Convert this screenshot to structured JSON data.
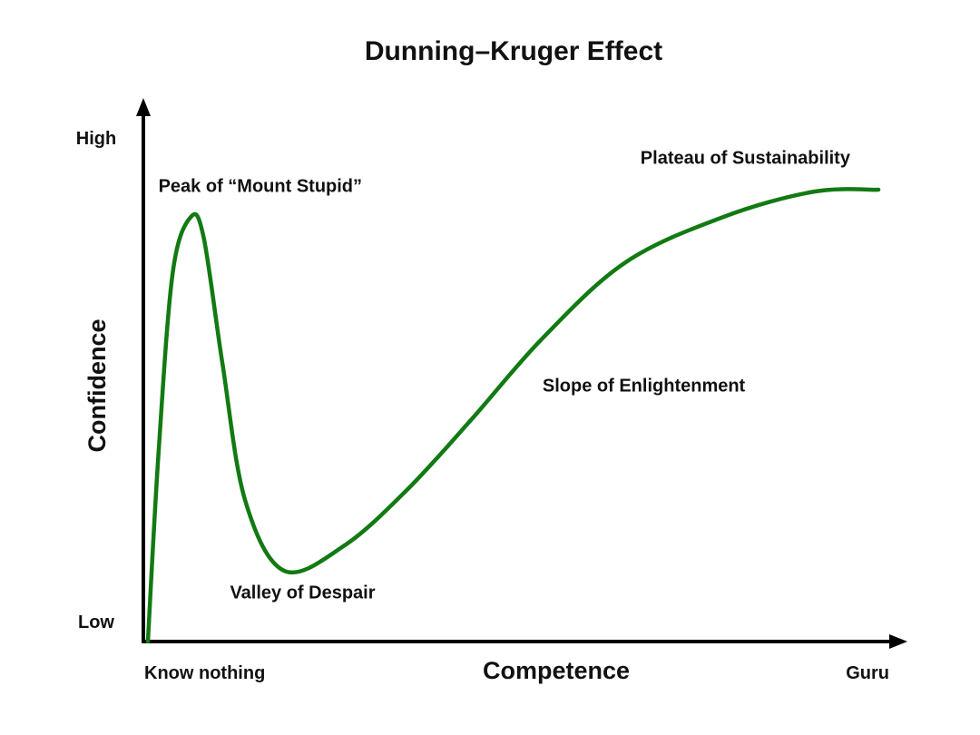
{
  "chart_data": {
    "type": "line",
    "title": "Dunning–Kruger Effect",
    "xlabel": "Competence",
    "ylabel": "Confidence",
    "x_tick_labels": [
      "Know nothing",
      "Guru"
    ],
    "y_tick_labels": [
      "Low",
      "High"
    ],
    "xlim": [
      0,
      100
    ],
    "ylim": [
      0,
      100
    ],
    "grid": false,
    "line_color": "#127a12",
    "series": [
      {
        "x": [
          0.6,
          2,
          3.9,
          6.3,
          8,
          10.5,
          13.5,
          18.7,
          26.7,
          35,
          43.6,
          53,
          64,
          77,
          89,
          97.6
        ],
        "y": [
          0,
          37,
          73,
          84,
          80,
          55,
          28,
          14,
          19,
          30,
          44,
          60,
          75,
          84,
          89,
          89.4
        ]
      }
    ],
    "annotations": [
      {
        "text": "Peak of “Mount Stupid”",
        "x": 2,
        "y": 89
      },
      {
        "text": "Valley of Despair",
        "x": 11.5,
        "y": 8.5
      },
      {
        "text": "Slope of Enlightenment",
        "x": 53,
        "y": 49.5
      },
      {
        "text": "Plateau of Sustainability",
        "x": 66,
        "y": 94.5
      }
    ]
  }
}
